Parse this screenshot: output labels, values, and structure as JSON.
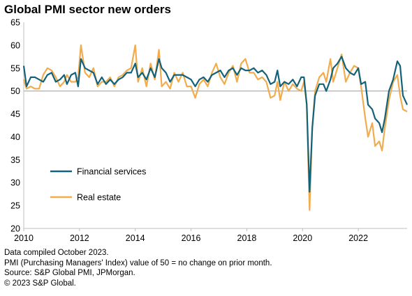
{
  "chart_data": {
    "type": "line",
    "title": "Global PMI sector new orders",
    "xlabel": "",
    "ylabel": "",
    "xlim": [
      2010,
      2023.75
    ],
    "ylim": [
      20,
      65
    ],
    "x_ticks": [
      "2010",
      "2012",
      "2014",
      "2016",
      "2018",
      "2020",
      "2022"
    ],
    "y_ticks": [
      "20",
      "25",
      "30",
      "35",
      "40",
      "45",
      "50",
      "55",
      "60",
      "65"
    ],
    "reference_line": 50,
    "grid": false,
    "legend": "lower-left",
    "colors": {
      "Financial services": "#14627a",
      "Real estate": "#f0ac4e",
      "reference": "#a6a6a6"
    },
    "series": [
      {
        "name": "Financial services",
        "points": [
          [
            2010.0,
            55.5
          ],
          [
            2010.1,
            51
          ],
          [
            2010.25,
            53
          ],
          [
            2010.4,
            53
          ],
          [
            2010.55,
            52.5
          ],
          [
            2010.7,
            52
          ],
          [
            2010.85,
            53.5
          ],
          [
            2011.0,
            54
          ],
          [
            2011.15,
            52
          ],
          [
            2011.3,
            52.5
          ],
          [
            2011.45,
            53.5
          ],
          [
            2011.55,
            51.5
          ],
          [
            2011.7,
            53.5
          ],
          [
            2011.85,
            54
          ],
          [
            2011.95,
            51
          ],
          [
            2012.05,
            57
          ],
          [
            2012.2,
            55
          ],
          [
            2012.35,
            54.5
          ],
          [
            2012.5,
            54
          ],
          [
            2012.65,
            51.5
          ],
          [
            2012.8,
            53
          ],
          [
            2012.95,
            51.5
          ],
          [
            2013.1,
            52.5
          ],
          [
            2013.25,
            51.5
          ],
          [
            2013.4,
            52.5
          ],
          [
            2013.55,
            53
          ],
          [
            2013.7,
            54
          ],
          [
            2013.85,
            54
          ],
          [
            2014.0,
            56
          ],
          [
            2014.1,
            53
          ],
          [
            2014.25,
            54
          ],
          [
            2014.4,
            52.5
          ],
          [
            2014.55,
            55
          ],
          [
            2014.7,
            53
          ],
          [
            2014.85,
            57
          ],
          [
            2014.95,
            55
          ],
          [
            2015.1,
            54
          ],
          [
            2015.25,
            52
          ],
          [
            2015.4,
            53.5
          ],
          [
            2015.55,
            53.5
          ],
          [
            2015.7,
            53.5
          ],
          [
            2015.85,
            53
          ],
          [
            2016.0,
            52.5
          ],
          [
            2016.15,
            51
          ],
          [
            2016.3,
            52.5
          ],
          [
            2016.45,
            53
          ],
          [
            2016.6,
            52
          ],
          [
            2016.75,
            53.5
          ],
          [
            2016.9,
            54
          ],
          [
            2017.05,
            54.5
          ],
          [
            2017.2,
            53
          ],
          [
            2017.35,
            54.5
          ],
          [
            2017.5,
            55
          ],
          [
            2017.65,
            53.5
          ],
          [
            2017.8,
            55
          ],
          [
            2017.95,
            54.5
          ],
          [
            2018.1,
            54.5
          ],
          [
            2018.25,
            55
          ],
          [
            2018.4,
            54
          ],
          [
            2018.55,
            54.5
          ],
          [
            2018.7,
            53.5
          ],
          [
            2018.85,
            51.5
          ],
          [
            2019.0,
            52
          ],
          [
            2019.1,
            54.5
          ],
          [
            2019.2,
            51
          ],
          [
            2019.35,
            52
          ],
          [
            2019.5,
            51.5
          ],
          [
            2019.65,
            52.5
          ],
          [
            2019.8,
            51
          ],
          [
            2019.95,
            53
          ],
          [
            2020.05,
            53
          ],
          [
            2020.15,
            47
          ],
          [
            2020.25,
            28
          ],
          [
            2020.35,
            42
          ],
          [
            2020.45,
            49
          ],
          [
            2020.6,
            51.5
          ],
          [
            2020.75,
            51.5
          ],
          [
            2020.85,
            50
          ],
          [
            2021.0,
            52.5
          ],
          [
            2021.1,
            55
          ],
          [
            2021.25,
            56
          ],
          [
            2021.4,
            57.5
          ],
          [
            2021.55,
            55
          ],
          [
            2021.7,
            54
          ],
          [
            2021.85,
            53.5
          ],
          [
            2022.0,
            55
          ],
          [
            2022.1,
            51.5
          ],
          [
            2022.25,
            52
          ],
          [
            2022.35,
            47
          ],
          [
            2022.5,
            46
          ],
          [
            2022.6,
            44
          ],
          [
            2022.75,
            43
          ],
          [
            2022.85,
            41
          ],
          [
            2022.95,
            44
          ],
          [
            2023.1,
            50
          ],
          [
            2023.25,
            52.5
          ],
          [
            2023.4,
            56.5
          ],
          [
            2023.5,
            55.5
          ],
          [
            2023.6,
            49
          ],
          [
            2023.75,
            47
          ]
        ]
      },
      {
        "name": "Real estate",
        "points": [
          [
            2010.0,
            52.5
          ],
          [
            2010.1,
            50.5
          ],
          [
            2010.25,
            51
          ],
          [
            2010.4,
            50.5
          ],
          [
            2010.55,
            50.5
          ],
          [
            2010.7,
            53.5
          ],
          [
            2010.85,
            55
          ],
          [
            2011.0,
            54.5
          ],
          [
            2011.15,
            53
          ],
          [
            2011.3,
            51
          ],
          [
            2011.45,
            52
          ],
          [
            2011.55,
            53.5
          ],
          [
            2011.7,
            52
          ],
          [
            2011.85,
            52
          ],
          [
            2011.95,
            53
          ],
          [
            2012.05,
            60
          ],
          [
            2012.2,
            54
          ],
          [
            2012.35,
            53
          ],
          [
            2012.5,
            55
          ],
          [
            2012.65,
            51
          ],
          [
            2012.8,
            52
          ],
          [
            2012.95,
            52
          ],
          [
            2013.1,
            53
          ],
          [
            2013.25,
            51
          ],
          [
            2013.4,
            53
          ],
          [
            2013.55,
            53.5
          ],
          [
            2013.7,
            54.5
          ],
          [
            2013.85,
            55
          ],
          [
            2014.0,
            60
          ],
          [
            2014.1,
            52
          ],
          [
            2014.25,
            55
          ],
          [
            2014.4,
            51
          ],
          [
            2014.55,
            56
          ],
          [
            2014.7,
            52.5
          ],
          [
            2014.85,
            59
          ],
          [
            2014.95,
            51
          ],
          [
            2015.1,
            52
          ],
          [
            2015.25,
            50.5
          ],
          [
            2015.4,
            54
          ],
          [
            2015.55,
            52
          ],
          [
            2015.7,
            54
          ],
          [
            2015.85,
            51
          ],
          [
            2016.0,
            51
          ],
          [
            2016.15,
            48.5
          ],
          [
            2016.3,
            51.5
          ],
          [
            2016.45,
            52.5
          ],
          [
            2016.6,
            51
          ],
          [
            2016.75,
            54
          ],
          [
            2016.9,
            56
          ],
          [
            2017.05,
            53
          ],
          [
            2017.2,
            51.5
          ],
          [
            2017.35,
            54
          ],
          [
            2017.5,
            55.5
          ],
          [
            2017.65,
            52
          ],
          [
            2017.8,
            56
          ],
          [
            2017.95,
            57
          ],
          [
            2018.1,
            54
          ],
          [
            2018.25,
            54
          ],
          [
            2018.4,
            52.5
          ],
          [
            2018.55,
            53
          ],
          [
            2018.7,
            52
          ],
          [
            2018.85,
            48.5
          ],
          [
            2019.0,
            49
          ],
          [
            2019.1,
            52
          ],
          [
            2019.2,
            48
          ],
          [
            2019.35,
            52
          ],
          [
            2019.5,
            50
          ],
          [
            2019.65,
            51.5
          ],
          [
            2019.8,
            50.5
          ],
          [
            2019.95,
            50
          ],
          [
            2020.05,
            52
          ],
          [
            2020.15,
            47
          ],
          [
            2020.25,
            24
          ],
          [
            2020.35,
            42
          ],
          [
            2020.45,
            50
          ],
          [
            2020.6,
            53
          ],
          [
            2020.75,
            54
          ],
          [
            2020.85,
            52
          ],
          [
            2021.0,
            57
          ],
          [
            2021.1,
            52
          ],
          [
            2021.25,
            55
          ],
          [
            2021.4,
            58
          ],
          [
            2021.55,
            52
          ],
          [
            2021.7,
            54
          ],
          [
            2021.85,
            55.5
          ],
          [
            2022.0,
            55
          ],
          [
            2022.1,
            51
          ],
          [
            2022.25,
            44
          ],
          [
            2022.35,
            40
          ],
          [
            2022.5,
            43
          ],
          [
            2022.6,
            38
          ],
          [
            2022.75,
            39
          ],
          [
            2022.85,
            37
          ],
          [
            2022.95,
            42
          ],
          [
            2023.1,
            48
          ],
          [
            2023.25,
            52
          ],
          [
            2023.4,
            53.5
          ],
          [
            2023.5,
            49
          ],
          [
            2023.6,
            46
          ],
          [
            2023.75,
            45.5
          ]
        ]
      }
    ]
  },
  "footnotes": [
    "Data compiled October 2023.",
    "PMI (Purchasing Managers' Index) value of 50 = no change on prior month.",
    "Source: S&P Global PMI, JPMorgan.",
    "© 2023 S&P Global."
  ]
}
